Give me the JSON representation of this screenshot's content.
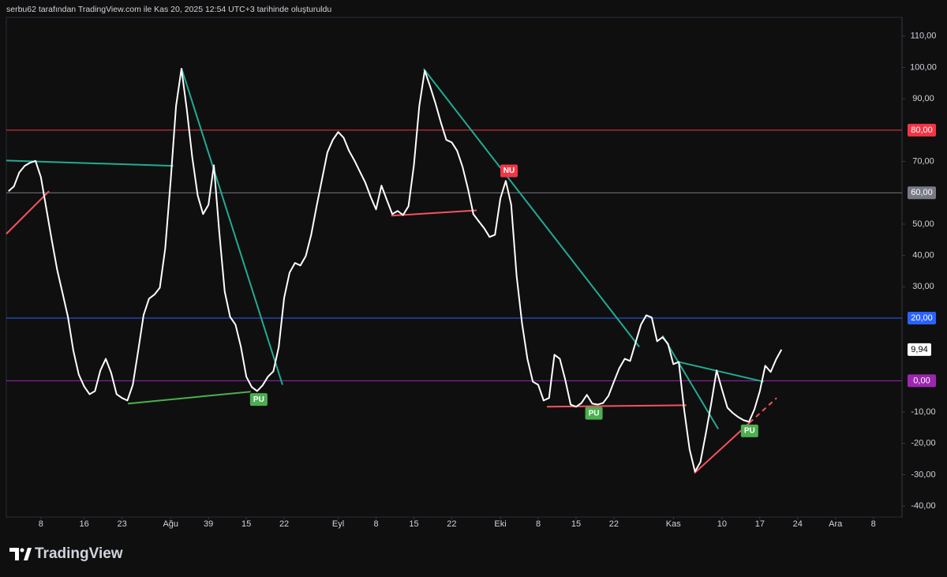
{
  "header": "serbu62 tarafından TradingView.com ile Kas 20, 2025 12:54 UTC+3 tarihinde oluşturuldu",
  "brand": "TradingView",
  "chart_data": {
    "type": "line",
    "x": [
      2,
      3,
      4,
      5,
      6,
      7,
      8,
      9,
      10,
      11,
      12,
      13,
      14,
      15,
      16,
      17,
      18,
      19,
      20,
      21,
      22,
      23,
      24,
      25,
      26,
      27,
      28,
      29,
      30,
      31,
      32,
      33,
      34,
      35,
      36,
      37,
      38,
      39,
      40,
      41,
      42,
      43,
      44,
      45,
      46,
      47,
      48,
      49,
      50,
      51,
      52,
      53,
      54,
      55,
      56,
      57,
      58,
      59,
      60,
      61,
      62,
      63,
      64,
      65,
      66,
      67,
      68,
      69,
      70,
      71,
      72,
      73,
      74,
      75,
      76,
      77,
      78,
      79,
      80,
      81,
      82,
      83,
      84,
      85,
      86,
      87,
      88,
      89,
      90,
      91,
      92,
      93,
      94,
      95,
      96,
      97,
      98,
      99,
      100,
      101,
      102,
      103,
      104,
      105,
      106,
      107,
      108,
      109,
      110,
      111,
      112,
      113,
      114,
      115,
      116,
      117,
      118,
      119,
      120,
      121,
      122,
      123,
      124,
      125,
      126,
      127,
      128,
      129,
      130,
      131,
      132,
      133,
      134,
      135,
      136,
      137,
      138,
      139,
      140,
      141,
      142,
      143,
      144,
      145
    ],
    "series": [
      {
        "color": "#ffffff",
        "price_label": "9,94",
        "values": [
          60.5,
          62,
          66.5,
          68.6,
          69.6,
          70.2,
          65,
          55,
          45,
          35.5,
          28,
          20.4,
          9.6,
          2,
          -1.8,
          -4.3,
          -3.3,
          3.3,
          7,
          2.5,
          -4.3,
          -5.5,
          -6.3,
          -1.3,
          9.6,
          21,
          26.2,
          27.5,
          29.7,
          42.3,
          63.8,
          87.7,
          99.6,
          86.5,
          71.3,
          59.2,
          53.2,
          56.2,
          68.8,
          47.4,
          28.5,
          20.4,
          17.9,
          10.8,
          1.3,
          -2,
          -3.3,
          -1.5,
          1.3,
          3,
          10.8,
          26.5,
          34.5,
          37.6,
          36.8,
          39.8,
          46.6,
          55.7,
          64.3,
          72.9,
          76.9,
          79.4,
          77.6,
          73.4,
          70.3,
          66.8,
          63.3,
          58.7,
          54.7,
          62.3,
          57.7,
          53.2,
          54.2,
          52.9,
          55.7,
          68.8,
          87.7,
          99,
          94,
          88.5,
          82.4,
          76.9,
          76.1,
          73.4,
          68.3,
          61.3,
          53.2,
          50.9,
          48.7,
          45.9,
          46.6,
          58.2,
          63.8,
          56.2,
          33.5,
          18.4,
          7,
          -0.3,
          -1.3,
          -6.3,
          -5.5,
          8.3,
          7,
          0.3,
          -7.6,
          -8.3,
          -7.1,
          -4.5,
          -7.3,
          -7.6,
          -7.1,
          -4.8,
          -0.3,
          4,
          7,
          6.3,
          12.1,
          17.9,
          20.9,
          20.2,
          12.6,
          13.9,
          11.8,
          5.3,
          6,
          -9.3,
          -21.9,
          -29,
          -26,
          -16.9,
          -7.3,
          3.3,
          -2.8,
          -8.6,
          -10.3,
          -11.6,
          -12.6,
          -13.1,
          -9.1,
          -3.3,
          4.8,
          2.8,
          6.8,
          9.94
        ]
      }
    ],
    "xlim": [
      1.6,
      167.3
    ],
    "ylim": [
      -43.5,
      116
    ],
    "xticks": [
      8,
      16,
      23,
      {
        "value": 32,
        "label": "Ağu"
      },
      39,
      {
        "value": 46,
        "label": "15"
      },
      {
        "value": 53,
        "label": "22"
      },
      {
        "value": 63,
        "label": "Eyl"
      },
      {
        "value": 70,
        "label": "8"
      },
      {
        "value": 77,
        "label": "15"
      },
      {
        "value": 84,
        "label": "22"
      },
      {
        "value": 93,
        "label": "Eki"
      },
      {
        "value": 100,
        "label": "8"
      },
      {
        "value": 107,
        "label": "15"
      },
      {
        "value": 114,
        "label": "22"
      },
      {
        "value": 125,
        "label": "Kas"
      },
      {
        "value": 134,
        "label": "10"
      },
      {
        "value": 141,
        "label": "17"
      },
      {
        "value": 148,
        "label": "24"
      },
      {
        "value": 155,
        "label": "Ara"
      },
      {
        "value": 162,
        "label": "8"
      }
    ],
    "yticks": [
      {
        "value": 110,
        "label": "110,00"
      },
      {
        "value": 100,
        "label": "100,00"
      },
      {
        "value": 90,
        "label": "90,00"
      },
      {
        "value": 70,
        "label": "70,00"
      },
      {
        "value": 50,
        "label": "50,00"
      },
      {
        "value": 40,
        "label": "40,00"
      },
      {
        "value": 30,
        "label": "30,00"
      },
      {
        "value": -10,
        "label": "-10,00"
      },
      {
        "value": -20,
        "label": "-20,00"
      },
      {
        "value": -30,
        "label": "-30,00"
      },
      {
        "value": -40,
        "label": "-40,00"
      }
    ],
    "hlines": [
      {
        "value": 80,
        "label": "80,00",
        "color": "#f23645"
      },
      {
        "value": 60,
        "label": "60,00",
        "color": "#787b86"
      },
      {
        "value": 20,
        "label": "20,00",
        "color": "#2962ff"
      },
      {
        "value": 0,
        "label": "0,00",
        "color": "#9c27b0"
      }
    ],
    "trendlines": [
      {
        "x": [
          1.6,
          32.5
        ],
        "y": [
          70.3,
          68.6
        ],
        "color": "#22ab94"
      },
      {
        "x": [
          1.6,
          9.5
        ],
        "y": [
          46.9,
          60.5
        ],
        "color": "#f7525f"
      },
      {
        "x": [
          34,
          52.7
        ],
        "y": [
          99.8,
          -1.3
        ],
        "color": "#22ab94"
      },
      {
        "x": [
          24.1,
          46.8
        ],
        "y": [
          -7.3,
          -3.5
        ],
        "color": "#4caf50"
      },
      {
        "x": [
          72.8,
          88.6
        ],
        "y": [
          52.7,
          54.4
        ],
        "color": "#f7525f"
      },
      {
        "x": [
          78.8,
          118.7
        ],
        "y": [
          99.6,
          10.8
        ],
        "color": "#22ab94"
      },
      {
        "x": [
          101.6,
          127.4
        ],
        "y": [
          -8.3,
          -7.8
        ],
        "color": "#f7525f"
      },
      {
        "x": [
          123,
          133.3
        ],
        "y": [
          14.4,
          -15.4
        ],
        "color": "#22ab94"
      },
      {
        "x": [
          126,
          141.7
        ],
        "y": [
          6,
          -0.3
        ],
        "color": "#22ab94"
      },
      {
        "x": [
          128.9,
          139.1
        ],
        "y": [
          -29.5,
          -13.4
        ],
        "color": "#f7525f"
      },
      {
        "x": [
          139.1,
          144.1
        ],
        "y": [
          -13.4,
          -5.5
        ],
        "color": "#f7525f",
        "dashed": true
      }
    ],
    "annotations": [
      {
        "text": "PU",
        "x": 48.3,
        "y": -6,
        "color": "#4caf50"
      },
      {
        "text": "NU",
        "x": 94.6,
        "y": 67,
        "color": "#f23645"
      },
      {
        "text": "PU",
        "x": 110.3,
        "y": -10.4,
        "color": "#4caf50"
      },
      {
        "text": "PU",
        "x": 139.1,
        "y": -16,
        "color": "#4caf50"
      }
    ]
  }
}
